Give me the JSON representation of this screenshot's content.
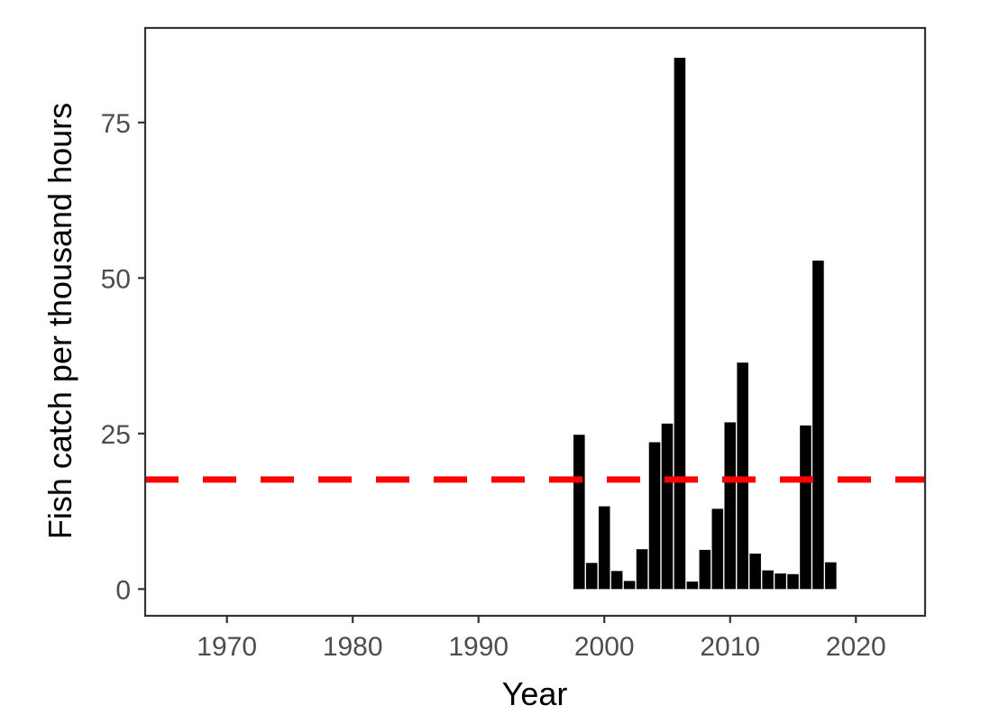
{
  "chart_data": {
    "type": "bar",
    "xlabel": "Year",
    "ylabel": "Fish catch per thousand hours",
    "xlim": [
      1963.5,
      2025.5
    ],
    "ylim": [
      -4.3,
      90.2
    ],
    "x_ticks": [
      1970,
      1980,
      1990,
      2000,
      2010,
      2020
    ],
    "y_ticks": [
      0,
      25,
      50,
      75
    ],
    "grid": false,
    "legend": "none",
    "bar_color": "#000000",
    "reference_line": {
      "y": 17.6,
      "color": "#ff0000",
      "style": "dashed"
    },
    "x": [
      1998,
      1999,
      2000,
      2001,
      2002,
      2003,
      2004,
      2005,
      2006,
      2007,
      2008,
      2009,
      2010,
      2011,
      2012,
      2013,
      2014,
      2015,
      2016,
      2017,
      2018
    ],
    "values": [
      24.8,
      4.2,
      13.3,
      2.9,
      1.3,
      6.4,
      23.6,
      26.6,
      85.4,
      1.2,
      6.3,
      12.9,
      26.8,
      36.4,
      5.7,
      3.0,
      2.5,
      2.4,
      26.3,
      52.8,
      4.3
    ]
  }
}
